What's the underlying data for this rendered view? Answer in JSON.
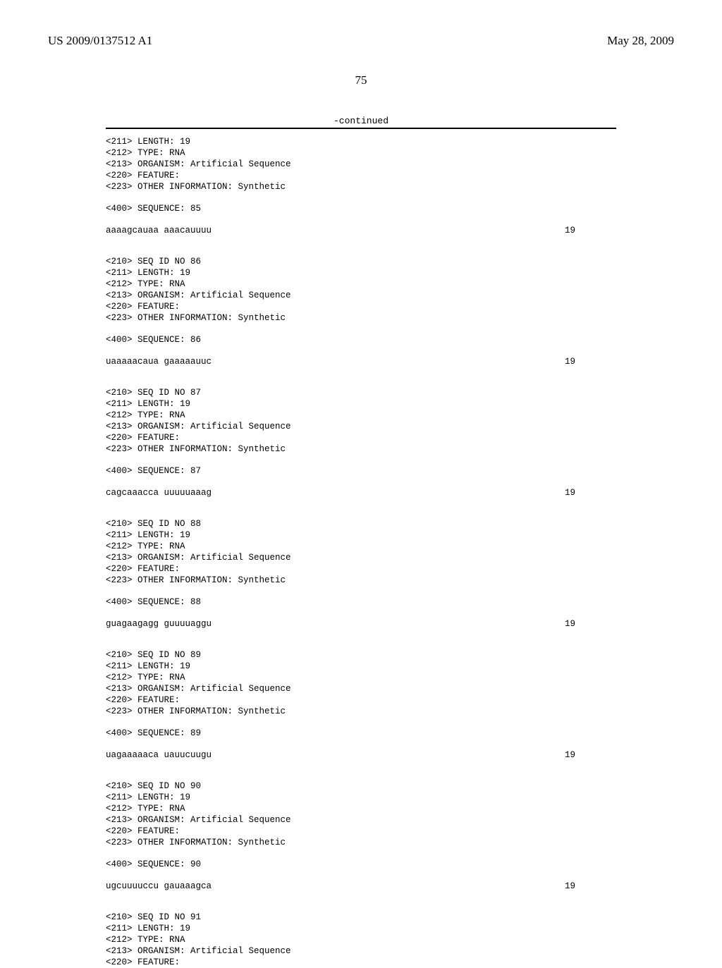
{
  "header": {
    "left": "US 2009/0137512 A1",
    "right": "May 28, 2009"
  },
  "page_number": "75",
  "continued_label": "-continued",
  "seq85": {
    "l1": "<211> LENGTH: 19",
    "l2": "<212> TYPE: RNA",
    "l3": "<213> ORGANISM: Artificial Sequence",
    "l4": "<220> FEATURE:",
    "l5": "<223> OTHER INFORMATION: Synthetic",
    "seq_hdr": "<400> SEQUENCE: 85",
    "sequence": "aaaagcauaa aaacauuuu",
    "length": "19"
  },
  "seq86": {
    "l0": "<210> SEQ ID NO 86",
    "l1": "<211> LENGTH: 19",
    "l2": "<212> TYPE: RNA",
    "l3": "<213> ORGANISM: Artificial Sequence",
    "l4": "<220> FEATURE:",
    "l5": "<223> OTHER INFORMATION: Synthetic",
    "seq_hdr": "<400> SEQUENCE: 86",
    "sequence": "uaaaaacaua gaaaaauuc",
    "length": "19"
  },
  "seq87": {
    "l0": "<210> SEQ ID NO 87",
    "l1": "<211> LENGTH: 19",
    "l2": "<212> TYPE: RNA",
    "l3": "<213> ORGANISM: Artificial Sequence",
    "l4": "<220> FEATURE:",
    "l5": "<223> OTHER INFORMATION: Synthetic",
    "seq_hdr": "<400> SEQUENCE: 87",
    "sequence": "cagcaaacca uuuuuaaag",
    "length": "19"
  },
  "seq88": {
    "l0": "<210> SEQ ID NO 88",
    "l1": "<211> LENGTH: 19",
    "l2": "<212> TYPE: RNA",
    "l3": "<213> ORGANISM: Artificial Sequence",
    "l4": "<220> FEATURE:",
    "l5": "<223> OTHER INFORMATION: Synthetic",
    "seq_hdr": "<400> SEQUENCE: 88",
    "sequence": "guagaagagg guuuuaggu",
    "length": "19"
  },
  "seq89": {
    "l0": "<210> SEQ ID NO 89",
    "l1": "<211> LENGTH: 19",
    "l2": "<212> TYPE: RNA",
    "l3": "<213> ORGANISM: Artificial Sequence",
    "l4": "<220> FEATURE:",
    "l5": "<223> OTHER INFORMATION: Synthetic",
    "seq_hdr": "<400> SEQUENCE: 89",
    "sequence": "uagaaaaaca uauucuugu",
    "length": "19"
  },
  "seq90": {
    "l0": "<210> SEQ ID NO 90",
    "l1": "<211> LENGTH: 19",
    "l2": "<212> TYPE: RNA",
    "l3": "<213> ORGANISM: Artificial Sequence",
    "l4": "<220> FEATURE:",
    "l5": "<223> OTHER INFORMATION: Synthetic",
    "seq_hdr": "<400> SEQUENCE: 90",
    "sequence": "ugcuuuuccu gauaaagca",
    "length": "19"
  },
  "seq91": {
    "l0": "<210> SEQ ID NO 91",
    "l1": "<211> LENGTH: 19",
    "l2": "<212> TYPE: RNA",
    "l3": "<213> ORGANISM: Artificial Sequence",
    "l4": "<220> FEATURE:"
  }
}
